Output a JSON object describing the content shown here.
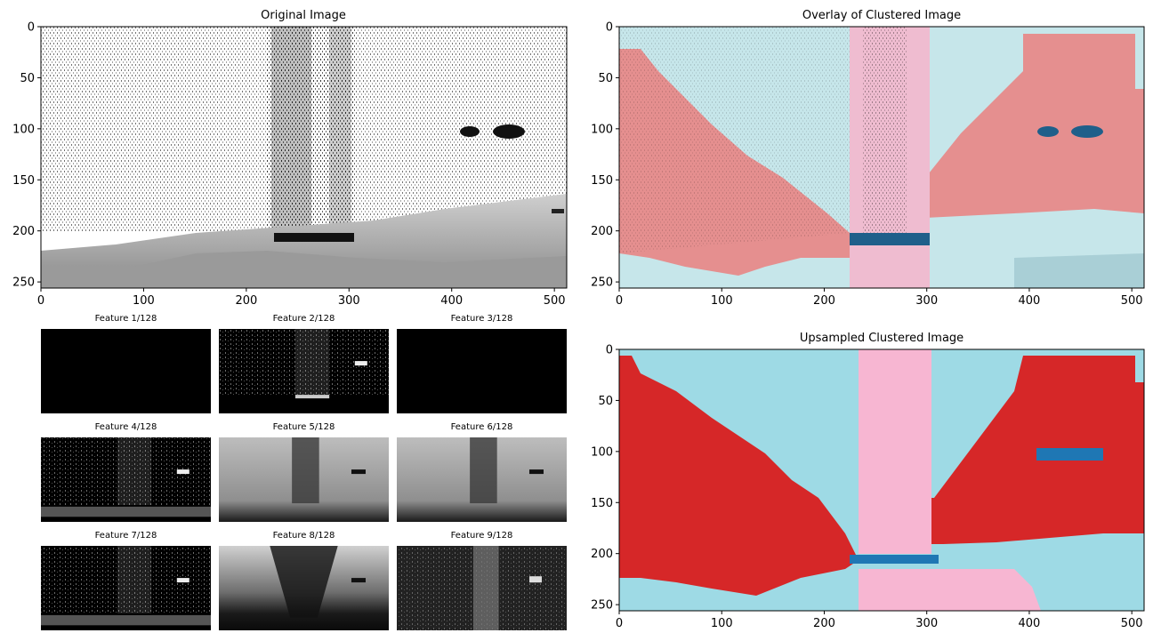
{
  "chart_data": [
    {
      "id": "original",
      "type": "heatmap",
      "title": "Original Image",
      "colormap": "gray",
      "xlim": [
        0,
        512
      ],
      "ylim": [
        256,
        0
      ],
      "xticks": [
        0,
        100,
        200,
        300,
        400,
        500
      ],
      "yticks": [
        0,
        50,
        100,
        150,
        200,
        250
      ]
    },
    {
      "id": "overlay",
      "type": "heatmap",
      "title": "Overlay of Clustered Image",
      "colormap": "tab20 overlay on gray",
      "xlim": [
        0,
        512
      ],
      "ylim": [
        256,
        0
      ],
      "xticks": [
        0,
        100,
        200,
        300,
        400,
        500
      ],
      "yticks": [
        0,
        50,
        100,
        150,
        200,
        250
      ]
    },
    {
      "id": "upsampled",
      "type": "heatmap",
      "title": "Upsampled Clustered Image",
      "colormap": "tab20",
      "cluster_colors": [
        "#9edae5",
        "#d62728",
        "#f7b6d2",
        "#1f77b4"
      ],
      "xlim": [
        0,
        512
      ],
      "ylim": [
        256,
        0
      ],
      "xticks": [
        0,
        100,
        200,
        300,
        400,
        500
      ],
      "yticks": [
        0,
        50,
        100,
        150,
        200,
        250
      ]
    },
    {
      "id": "features",
      "type": "heatmap",
      "colormap": "gray",
      "panels": [
        {
          "title": "Feature 1/128",
          "pattern": "dark"
        },
        {
          "title": "Feature 2/128",
          "pattern": "speckle"
        },
        {
          "title": "Feature 3/128",
          "pattern": "dark"
        },
        {
          "title": "Feature 4/128",
          "pattern": "speckle-ground"
        },
        {
          "title": "Feature 5/128",
          "pattern": "bright"
        },
        {
          "title": "Feature 6/128",
          "pattern": "bright"
        },
        {
          "title": "Feature 7/128",
          "pattern": "speckle-ground"
        },
        {
          "title": "Feature 8/128",
          "pattern": "inverted"
        },
        {
          "title": "Feature 9/128",
          "pattern": "column"
        }
      ]
    }
  ],
  "colors": {
    "cyan": "#9edae5",
    "red": "#d62728",
    "pink": "#f7b6d2",
    "blue": "#1f77b4",
    "axis": "#000000"
  }
}
